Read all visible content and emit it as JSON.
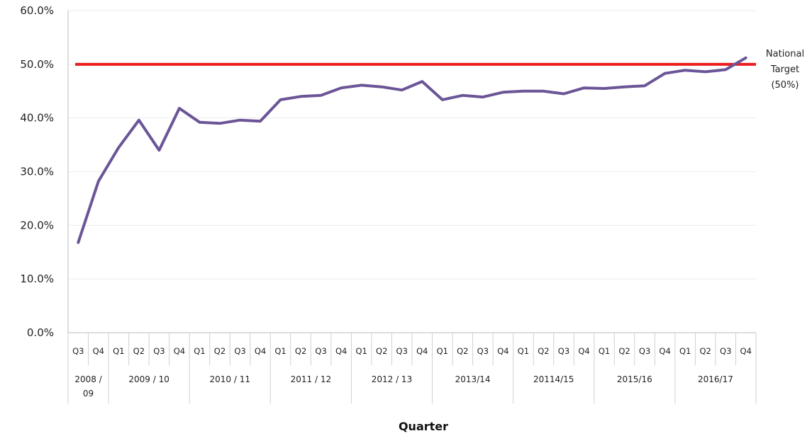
{
  "chart_data": {
    "type": "line",
    "title": "",
    "xlabel": "Quarter",
    "ylabel": "",
    "ylim": [
      0,
      60
    ],
    "ytick_labels": [
      "0.0%",
      "10.0%",
      "20.0%",
      "30.0%",
      "40.0%",
      "50.0%",
      "60.0%"
    ],
    "grid": true,
    "categories": [
      "Q3",
      "Q4",
      "Q1",
      "Q2",
      "Q3",
      "Q4",
      "Q1",
      "Q2",
      "Q3",
      "Q4",
      "Q1",
      "Q2",
      "Q3",
      "Q4",
      "Q1",
      "Q2",
      "Q3",
      "Q4",
      "Q1",
      "Q2",
      "Q3",
      "Q4",
      "Q1",
      "Q2",
      "Q3",
      "Q4",
      "Q1",
      "Q2",
      "Q3",
      "Q4",
      "Q1",
      "Q2",
      "Q3",
      "Q4"
    ],
    "year_groups": [
      {
        "label": "2008 / 09",
        "count": 2
      },
      {
        "label": "2009 / 10",
        "count": 4
      },
      {
        "label": "2010 / 11",
        "count": 4
      },
      {
        "label": "2011 / 12",
        "count": 4
      },
      {
        "label": "2012 / 13",
        "count": 4
      },
      {
        "label": "2013/14",
        "count": 4
      },
      {
        "label": "20114/15",
        "count": 4
      },
      {
        "label": "2015/16",
        "count": 4
      },
      {
        "label": "2016/17",
        "count": 4
      }
    ],
    "series": [
      {
        "values": [
          16.8,
          28.2,
          34.5,
          39.6,
          34.0,
          41.8,
          39.2,
          39.0,
          39.6,
          39.4,
          43.4,
          44.0,
          44.2,
          45.6,
          46.1,
          45.8,
          45.2,
          46.8,
          43.4,
          44.2,
          43.9,
          44.8,
          45.0,
          45.0,
          44.5,
          45.6,
          45.5,
          45.8,
          46.0,
          48.3,
          48.9,
          48.6,
          49.0,
          51.2
        ],
        "color": "#6b5597"
      }
    ],
    "target": {
      "value": 50,
      "label_lines": [
        "National",
        "Target",
        "(50%)"
      ],
      "color": "#ee1c1c"
    }
  }
}
